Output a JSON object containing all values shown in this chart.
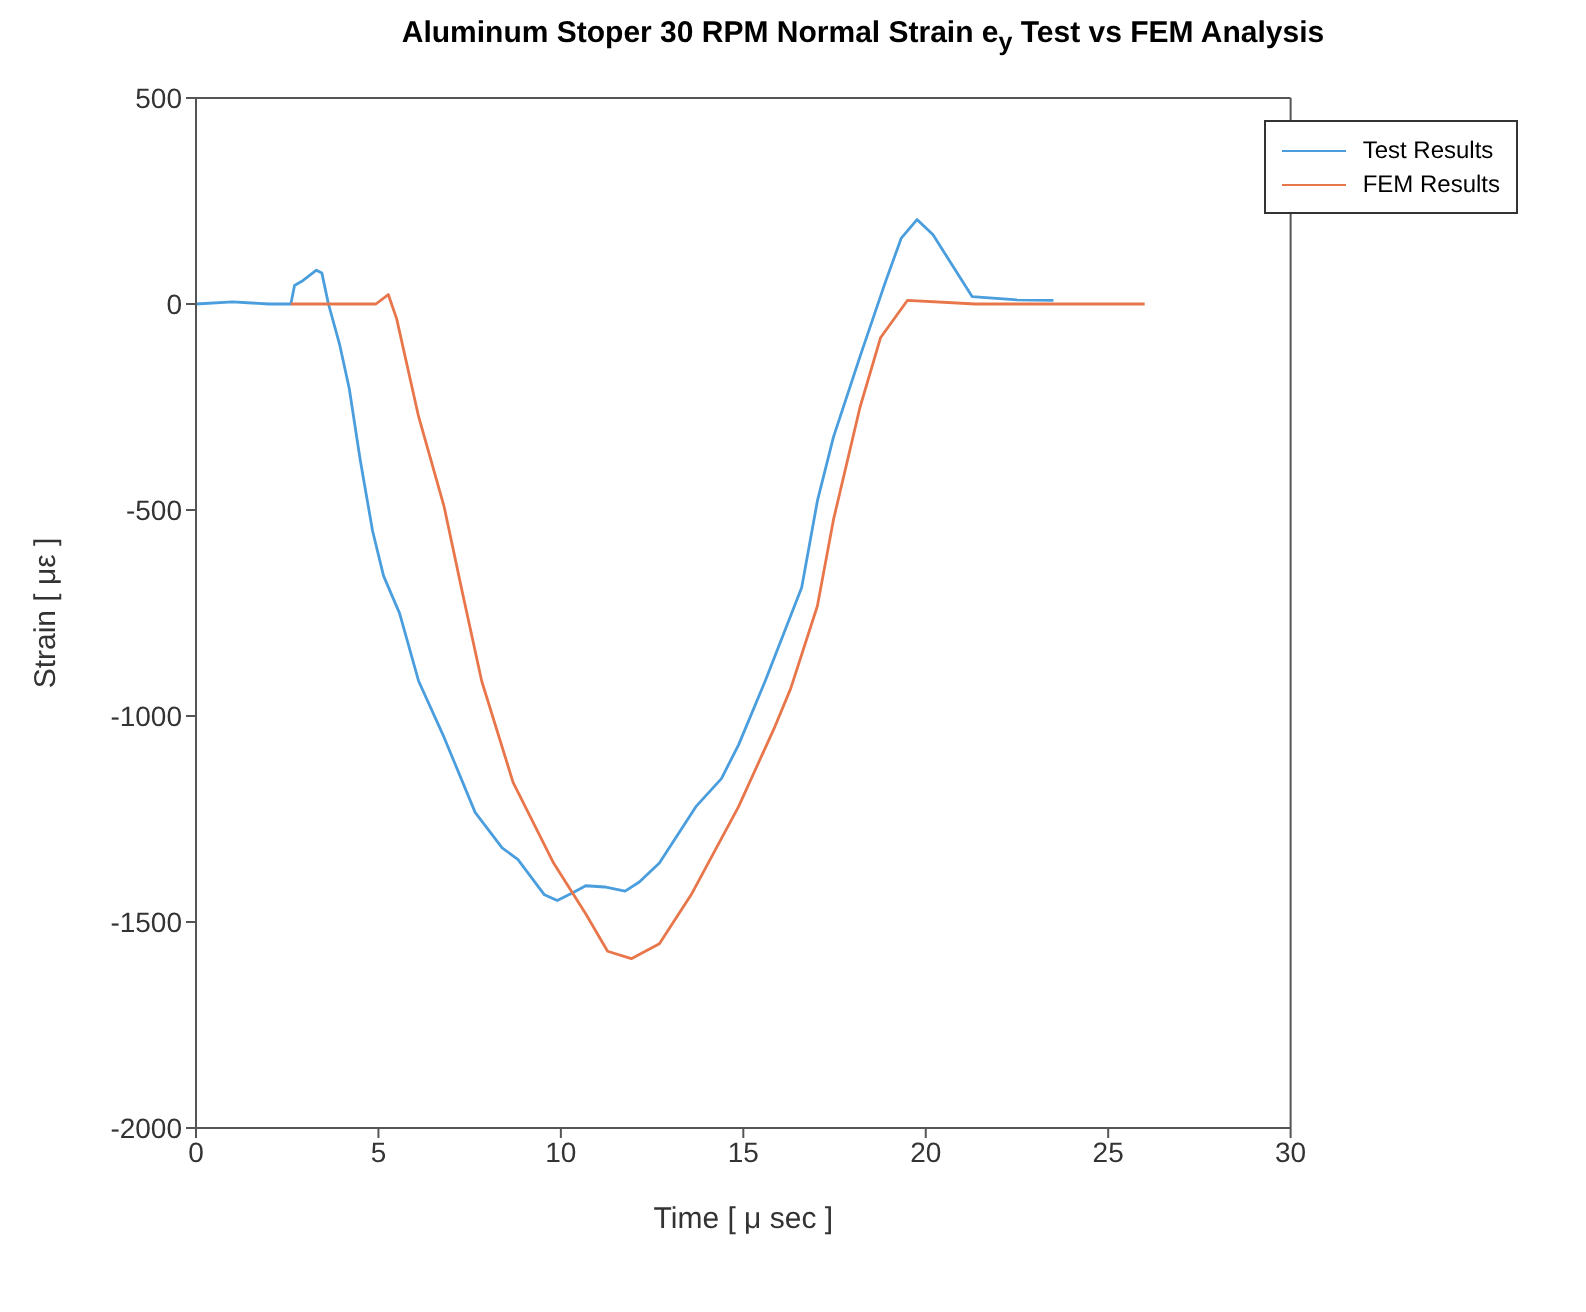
{
  "chart_data": {
    "type": "line",
    "title": "Aluminum Stoper 30 RPM Normal Strain e$_{y}$ Test vs FEM Analysis",
    "xlabel": "Time [ μ sec ]",
    "ylabel": "Strain [ με ]",
    "xlim": [
      0,
      30
    ],
    "xticks": [
      0,
      5,
      10,
      15,
      20,
      25,
      30
    ],
    "ylim": [
      -2000,
      500
    ],
    "yticks": [
      -2000,
      -1500,
      -1000,
      -500,
      0,
      500
    ],
    "grid": false,
    "legend": "top right",
    "marker": "none",
    "line_style": "solid",
    "series": [
      {
        "name": "Test Results",
        "color": "#4a9ede",
        "x": [
          0,
          1,
          2,
          2.6,
          2.7,
          2.9,
          3.3,
          3.45,
          3.63,
          3.93,
          4.2,
          4.5,
          4.84,
          5.14,
          5.58,
          6.1,
          6.8,
          7.65,
          8.39,
          8.82,
          9.55,
          9.9,
          10.3,
          10.68,
          11.2,
          11.76,
          12.15,
          12.7,
          13.7,
          14.4,
          14.87,
          15.6,
          16.6,
          17.03,
          17.47,
          18.2,
          18.9,
          19.33,
          19.76,
          20.2,
          21.27,
          22.5,
          23.5
        ],
        "values": [
          0,
          5,
          0,
          0,
          45,
          55,
          82,
          75,
          0,
          -96,
          -205,
          -378,
          -551,
          -660,
          -751,
          -915,
          -1052,
          -1234,
          -1320,
          -1348,
          -1434,
          -1448,
          -1430,
          -1412,
          -1415,
          -1425,
          -1403,
          -1357,
          -1220,
          -1152,
          -1070,
          -915,
          -688,
          -478,
          -323,
          -127,
          55,
          160,
          205,
          168,
          18,
          10,
          9
        ]
      },
      {
        "name": "FEM Results",
        "color": "#e8764a",
        "x": [
          2.6,
          4.93,
          5.27,
          5.5,
          6.1,
          6.8,
          7.3,
          7.83,
          8.69,
          9.8,
          10.68,
          11.28,
          11.93,
          12.7,
          13.57,
          14.87,
          15.87,
          16.3,
          17.03,
          17.47,
          18.2,
          18.76,
          19.5,
          21.36,
          26
        ],
        "values": [
          0,
          0,
          23,
          -36,
          -273,
          -492,
          -700,
          -915,
          -1161,
          -1357,
          -1480,
          -1571,
          -1589,
          -1553,
          -1434,
          -1220,
          -1025,
          -933,
          -733,
          -524,
          -250,
          -82,
          9,
          0,
          0
        ]
      }
    ]
  }
}
